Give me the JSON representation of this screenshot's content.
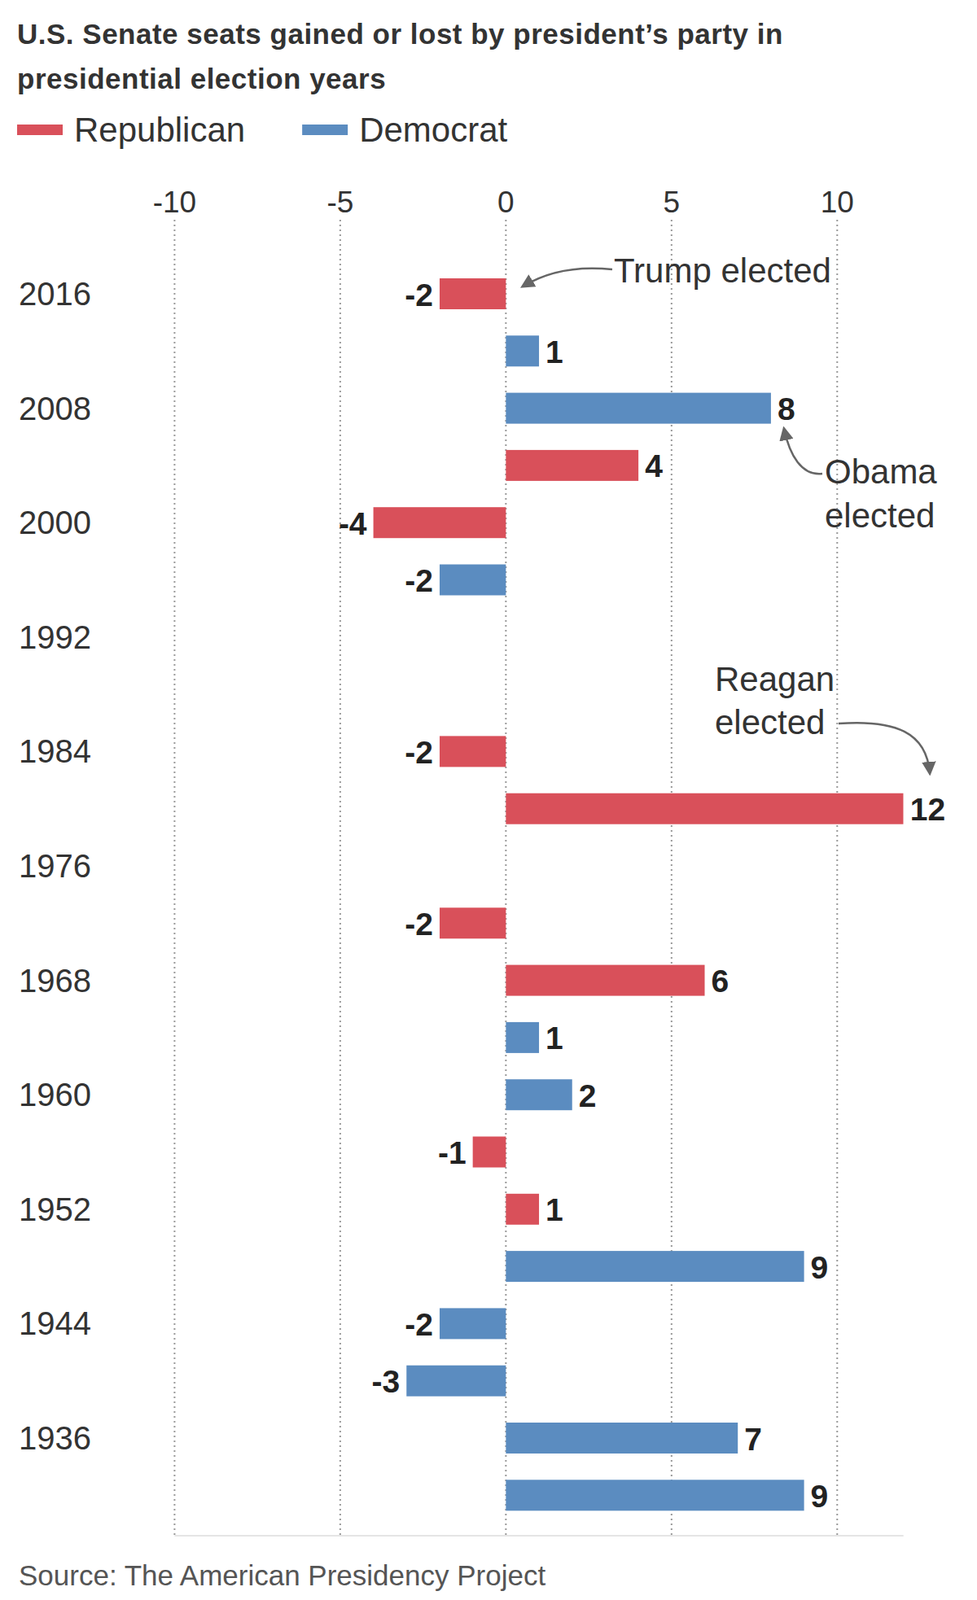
{
  "chart_data": {
    "type": "bar",
    "title": "U.S. Senate seats gained or lost by president’s party in presidential election years",
    "orientation": "horizontal",
    "categories": [
      "2016",
      null,
      "2008",
      null,
      "2000",
      null,
      "1992",
      null,
      "1984",
      null,
      "1976",
      null,
      "1968",
      null,
      "1960",
      null,
      "1952",
      null,
      "1944",
      null,
      "1936",
      null
    ],
    "series": [
      {
        "name": "Republican",
        "color": "#d9505a",
        "values": [
          -2,
          null,
          null,
          4,
          -4,
          null,
          null,
          null,
          -2,
          12,
          null,
          -2,
          6,
          null,
          null,
          -1,
          1,
          null,
          null,
          null,
          null,
          null
        ]
      },
      {
        "name": "Democrat",
        "color": "#5b8cc0",
        "values": [
          null,
          1,
          8,
          null,
          null,
          -2,
          null,
          null,
          null,
          null,
          null,
          null,
          null,
          1,
          2,
          null,
          null,
          9,
          -2,
          -3,
          7,
          9
        ]
      }
    ],
    "xlim": [
      -10,
      12
    ],
    "xticks": [
      -10,
      -5,
      0,
      5,
      10
    ],
    "grid": true,
    "legend": "top-left",
    "data_labels": true,
    "annotations": [
      {
        "lines": [
          "Trump elected"
        ]
      },
      {
        "lines": [
          "Obama",
          "elected"
        ]
      },
      {
        "lines": [
          "Reagan",
          "elected"
        ]
      }
    ],
    "source": "Source: The American Presidency Project"
  }
}
